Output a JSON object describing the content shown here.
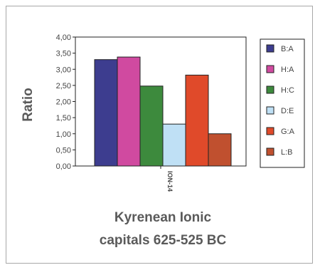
{
  "chart_data": {
    "type": "bar",
    "categories": [
      "ION-14"
    ],
    "series": [
      {
        "name": "B:A",
        "values": [
          3.3
        ],
        "color": "#3d3d8f"
      },
      {
        "name": "H:A",
        "values": [
          3.38
        ],
        "color": "#d04aa0"
      },
      {
        "name": "H:C",
        "values": [
          2.48
        ],
        "color": "#3d8a3d"
      },
      {
        "name": "D:E",
        "values": [
          1.3
        ],
        "color": "#bfe0f5"
      },
      {
        "name": "G:A",
        "values": [
          2.82
        ],
        "color": "#e04a2a"
      },
      {
        "name": "L:B",
        "values": [
          1.0
        ],
        "color": "#c0502f"
      }
    ],
    "ylabel": "Ratio",
    "xlabel_lines": [
      "Kyrenean Ionic",
      "capitals 625-525 BC"
    ],
    "ylim": [
      0,
      4
    ],
    "yticks": [
      "0,00",
      "0,50",
      "1,00",
      "1,50",
      "2,00",
      "2,50",
      "3,00",
      "3,50",
      "4,00"
    ],
    "grid": false,
    "legend": "right"
  }
}
